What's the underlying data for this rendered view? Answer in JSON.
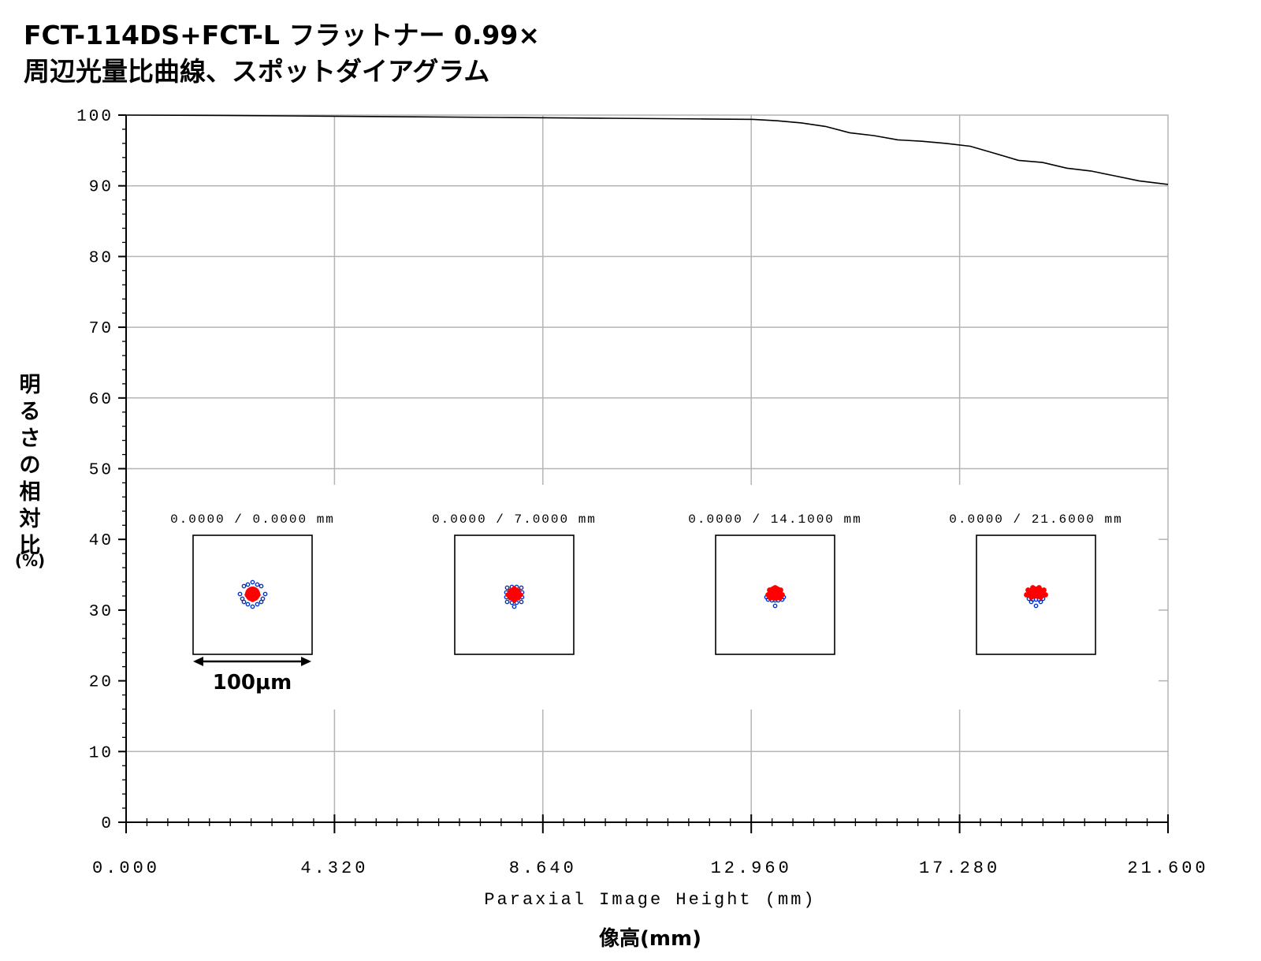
{
  "title_lines": [
    "FCT-114DS+FCT-L フラットナー 0.99×",
    "周辺光量比曲線、スポットダイアグラム"
  ],
  "chart_data": {
    "type": "line",
    "xlabel": "Paraxial Image Height (mm)",
    "xlabel_jp": "像高(mm)",
    "ylabel_jp": [
      "明",
      "る",
      "さ",
      "の",
      "相",
      "対",
      "比"
    ],
    "ylabel_unit": "(%)",
    "xlim": [
      0,
      21.6
    ],
    "ylim": [
      0,
      100
    ],
    "x_ticks": [
      "0.000",
      "4.320",
      "8.640",
      "12.960",
      "17.280",
      "21.600"
    ],
    "y_ticks": [
      "0",
      "10",
      "20",
      "30",
      "40",
      "50",
      "60",
      "70",
      "80",
      "90",
      "100"
    ],
    "grid": true,
    "series": [
      {
        "x": [
          0,
          2,
          4,
          6,
          8,
          10,
          12,
          13,
          13.5,
          14,
          14.5,
          15,
          15.5,
          16,
          16.5,
          17,
          17.5,
          18,
          18.5,
          19,
          19.5,
          20,
          20.5,
          21,
          21.6
        ],
        "y": [
          100,
          99.95,
          99.85,
          99.75,
          99.65,
          99.55,
          99.45,
          99.4,
          99.2,
          98.9,
          98.4,
          97.5,
          97.1,
          96.5,
          96.3,
          96.0,
          95.6,
          94.6,
          93.6,
          93.3,
          92.5,
          92.1,
          91.4,
          90.7,
          90.2
        ]
      }
    ],
    "spot_diagrams": [
      {
        "label": "0.0000 /   0.0000 mm",
        "shape": "symmetric"
      },
      {
        "label": "0.0000 /   7.0000 mm",
        "shape": "square"
      },
      {
        "label": "0.0000 /  14.1000 mm",
        "shape": "offset-up"
      },
      {
        "label": "0.0000 /  21.6000 mm",
        "shape": "wide-up"
      }
    ],
    "scale_bar_label": "100μm",
    "colors": {
      "line": "#000000",
      "grid": "#b4b4b4",
      "spot_primary": "#ff0000",
      "spot_secondary": "#0033cc"
    }
  }
}
